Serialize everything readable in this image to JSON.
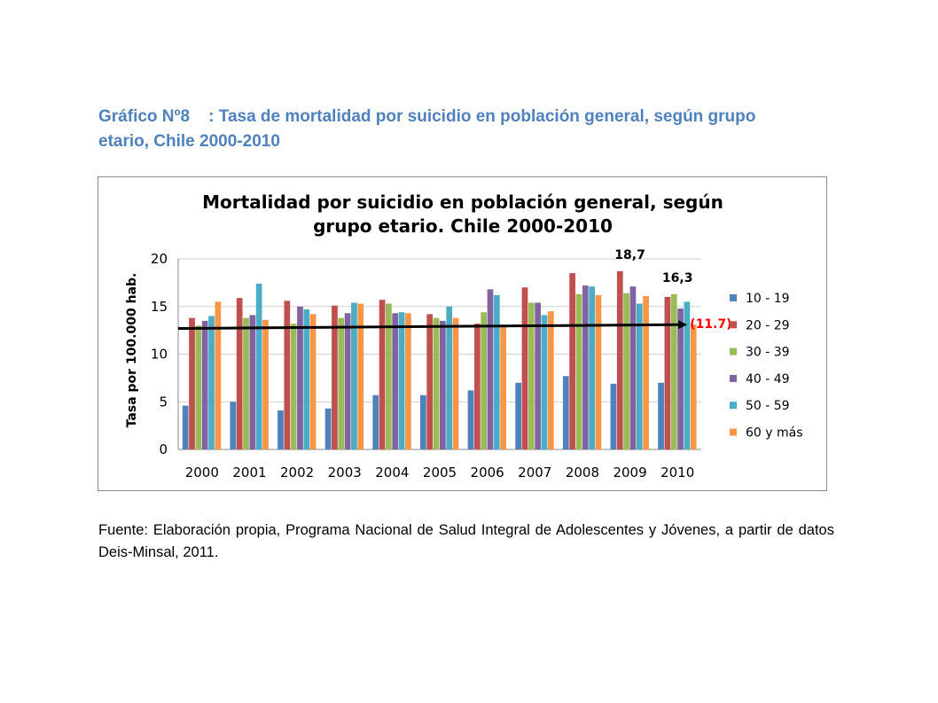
{
  "heading": {
    "line1": "Gráfico Nº8    : Tasa de mortalidad por suicidio en población general, según grupo",
    "line2": "etario, Chile 2000-2010"
  },
  "source": "Fuente: Elaboración propia, Programa Nacional de Salud Integral  de Adolescentes y Jóvenes, a partir de datos Deis-Minsal, 2011.",
  "chart_data": {
    "type": "bar",
    "title_line1": "Mortalidad por suicidio en población general, según",
    "title_line2": "grupo etario. Chile 2000-2010",
    "ylabel": "Tasa por 100.000 hab.",
    "xlabel": "",
    "ylim": [
      0,
      20
    ],
    "yticks": [
      "0",
      "5",
      "10",
      "15",
      "20"
    ],
    "grid": true,
    "legend_position": "right",
    "categories": [
      "2000",
      "2001",
      "2002",
      "2003",
      "2004",
      "2005",
      "2006",
      "2007",
      "2008",
      "2009",
      "2010"
    ],
    "series": [
      {
        "name": "10 - 19",
        "color": "#4f81bd",
        "values": [
          4.6,
          5.0,
          4.1,
          4.3,
          5.7,
          5.7,
          6.2,
          7.0,
          7.7,
          6.9,
          7.0
        ]
      },
      {
        "name": "20 - 29",
        "color": "#c0504d",
        "values": [
          13.8,
          15.9,
          15.6,
          15.1,
          15.7,
          14.2,
          13.2,
          17.0,
          18.5,
          18.7,
          16.0
        ]
      },
      {
        "name": "30 - 39",
        "color": "#9bbb59",
        "values": [
          13.0,
          13.8,
          13.2,
          13.8,
          15.3,
          13.8,
          14.4,
          15.4,
          16.3,
          16.4,
          16.3
        ]
      },
      {
        "name": "40 - 49",
        "color": "#8064a2",
        "values": [
          13.5,
          14.1,
          15.0,
          14.3,
          14.3,
          13.5,
          16.8,
          15.4,
          17.2,
          17.1,
          14.8
        ]
      },
      {
        "name": "50 - 59",
        "color": "#4bacc6",
        "values": [
          14.0,
          17.4,
          14.7,
          15.4,
          14.4,
          15.0,
          16.2,
          14.1,
          17.1,
          15.3,
          15.5
        ]
      },
      {
        "name": "60 y más",
        "color": "#f79646",
        "values": [
          15.5,
          13.6,
          14.2,
          15.3,
          14.3,
          13.8,
          13.0,
          14.5,
          16.2,
          16.1,
          13.1
        ]
      }
    ],
    "annotations": [
      {
        "category": "2009",
        "text": "18,7"
      },
      {
        "category": "2010",
        "text": "16,3"
      }
    ],
    "trend_line": {
      "start": 12.7,
      "end": 13.1,
      "label": "(11.7)",
      "label_color": "#ff0000",
      "color": "#000000"
    }
  }
}
